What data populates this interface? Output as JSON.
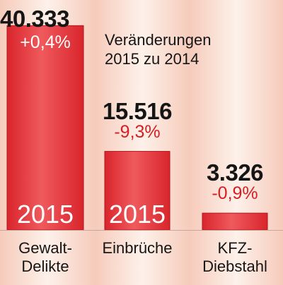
{
  "note": {
    "line1": "Veränderungen",
    "line2": "2015 zu 2014"
  },
  "chart_data": {
    "type": "bar",
    "categories": [
      "Gewalt-\nDelikte",
      "Einbrüche",
      "KFZ-\nDiebstahl"
    ],
    "values": [
      40333,
      15516,
      3326
    ],
    "value_labels": [
      "40.333",
      "15.516",
      "3.326"
    ],
    "changes": [
      "+0,4%",
      "-9,3%",
      "-0,9%"
    ],
    "bar_label": "2015",
    "ylim": [
      0,
      44000
    ],
    "grid": false,
    "colors": {
      "bar": "#d9252c",
      "bar_highlight": "#ef5a5d",
      "background": "#fbe5dc",
      "text": "#151515",
      "change_text": "#d81e25"
    }
  }
}
